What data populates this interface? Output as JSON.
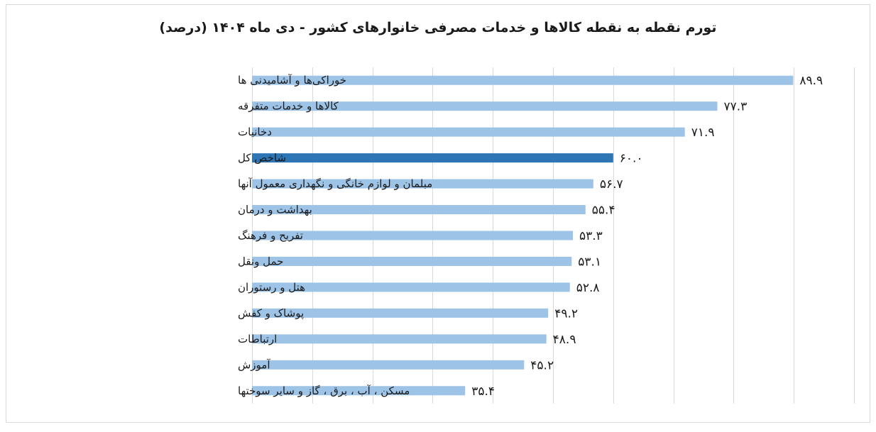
{
  "chart_data": {
    "type": "bar",
    "orientation": "horizontal",
    "title": "تورم نقطه به نقطه کالاها و خدمات مصرفی خانوارهای کشور - دی ماه ۱۴۰۴ (درصد)",
    "categories": [
      "خوراکی‌ها و آشامیدنی ها",
      "کالاها و خدمات متفرقه",
      "دخانیات",
      "شاخص کل",
      "مبلمان و لوازم خانگی و نگهداری معمول آنها",
      "بهداشت و درمان",
      "تفریح و فرهنگ",
      "حمل ونقل",
      "هتل و رستوران",
      "پوشاک و کفش",
      "ارتباطات",
      "آموزش",
      "مسکن ، آب ، برق ، گاز و سایر سوختها"
    ],
    "values": [
      89.9,
      77.3,
      71.9,
      60.0,
      56.7,
      55.4,
      53.3,
      53.1,
      52.8,
      49.2,
      48.9,
      45.2,
      35.4
    ],
    "value_labels": [
      "۸۹.۹",
      "۷۷.۳",
      "۷۱.۹",
      "۶۰.۰",
      "۵۶.۷",
      "۵۵.۴",
      "۵۳.۳",
      "۵۳.۱",
      "۵۲.۸",
      "۴۹.۲",
      "۴۸.۹",
      "۴۵.۲",
      "۳۵.۴"
    ],
    "highlight_index": 3,
    "xlim": [
      0,
      100
    ],
    "xlabel": "",
    "ylabel": "",
    "grid": true,
    "colors": {
      "bar": "#9dc3e6",
      "highlight": "#2e75b6",
      "grid": "#d9d9d9"
    }
  }
}
